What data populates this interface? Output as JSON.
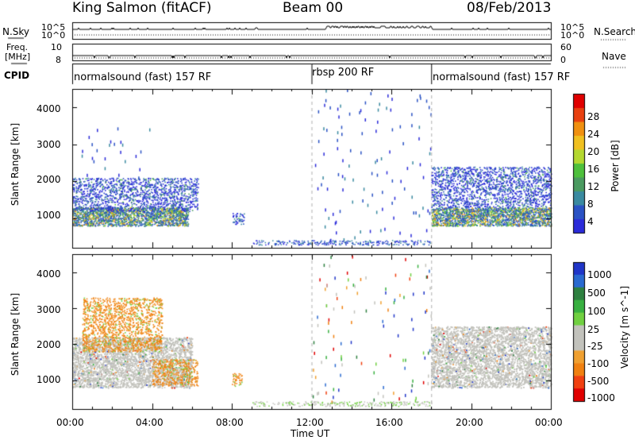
{
  "header": {
    "station": "King Salmon (fitACF)",
    "beam": "Beam 00",
    "date": "08/Feb/2013"
  },
  "top_panels": {
    "nsky_label": "N.Sky",
    "nsearch_label": "N.Search",
    "freq_label": "Freq.",
    "freq_unit": "[MHz]",
    "nave_label": "Nave",
    "cpid_label": "CPID",
    "nsky_ticks": [
      "10^5",
      "10^0"
    ],
    "nsearch_ticks": [
      "10^5",
      "10^0"
    ],
    "freq_ticks": [
      "10",
      "8"
    ],
    "nave_ticks": [
      "60",
      "0"
    ]
  },
  "cpid_segments": [
    {
      "label": "normalsound (fast) 157 RF",
      "start_hour": 0,
      "end_hour": 12
    },
    {
      "label": "rbsp 200 RF",
      "start_hour": 12,
      "end_hour": 18
    },
    {
      "label": "normalsound (fast) 157 RF",
      "start_hour": 18,
      "end_hour": 24
    }
  ],
  "x_axis": {
    "label": "Time UT",
    "ticks": [
      "00:00",
      "04:00",
      "08:00",
      "12:00",
      "16:00",
      "20:00",
      "00:00"
    ]
  },
  "range_axis": {
    "label": "Slant Range [km]",
    "ticks": [
      "1000",
      "2000",
      "3000",
      "4000"
    ]
  },
  "colors": {
    "grey_scatter": "#c2c2bc",
    "dashed_marker": "#b0b0b0"
  },
  "power_scale": {
    "label": "Power [dB]",
    "ticks": [
      "4",
      "8",
      "12",
      "16",
      "20",
      "24",
      "28"
    ],
    "colors": [
      "#2b2bd9",
      "#2a52c4",
      "#3a8aa0",
      "#4a9a60",
      "#4ec03c",
      "#b4d830",
      "#f0c020",
      "#f09010",
      "#e84010",
      "#e00000"
    ]
  },
  "velocity_scale": {
    "label": "Velocity [m s^-1]",
    "ticks": [
      "1000",
      "500",
      "100",
      "25",
      "-25",
      "-100",
      "-500",
      "-1000"
    ],
    "colors": [
      "#2036c8",
      "#2a6ad0",
      "#2e8040",
      "#38b040",
      "#70d040",
      "#c2c2bc",
      "#c2c2bc",
      "#f0a030",
      "#f08010",
      "#f04010",
      "#e00000"
    ]
  },
  "chart_data": [
    {
      "type": "heatmap",
      "title": "Power",
      "x_range_hours": [
        0,
        24
      ],
      "y_range_km": [
        200,
        4500
      ],
      "scatter_blobs": [
        {
          "t0": 0.0,
          "t1": 5.8,
          "r0": 800,
          "r1": 1300,
          "level": "high"
        },
        {
          "t0": 0.0,
          "t1": 6.3,
          "r0": 1200,
          "r1": 2100,
          "level": "low"
        },
        {
          "t0": 0.2,
          "t1": 4.0,
          "r0": 2100,
          "r1": 3500,
          "level": "sparse"
        },
        {
          "t0": 8.0,
          "t1": 8.6,
          "r0": 850,
          "r1": 1150,
          "level": "low"
        },
        {
          "t0": 18.0,
          "t1": 24.0,
          "r0": 800,
          "r1": 1300,
          "level": "high"
        },
        {
          "t0": 18.0,
          "t1": 24.0,
          "r0": 1300,
          "r1": 2400,
          "level": "low"
        },
        {
          "t0": 12.0,
          "t1": 18.0,
          "r0": 300,
          "r1": 4500,
          "level": "sparse"
        }
      ]
    },
    {
      "type": "heatmap",
      "title": "Velocity",
      "x_range_hours": [
        0,
        24
      ],
      "y_range_km": [
        200,
        4500
      ],
      "scatter_blobs": [
        {
          "t0": 0.0,
          "t1": 6.0,
          "r0": 800,
          "r1": 2200,
          "level": "grey"
        },
        {
          "t0": 0.5,
          "t1": 4.5,
          "r0": 1800,
          "r1": 3300,
          "level": "orange"
        },
        {
          "t0": 4.0,
          "t1": 6.3,
          "r0": 850,
          "r1": 1600,
          "level": "orange"
        },
        {
          "t0": 8.0,
          "t1": 8.5,
          "r0": 850,
          "r1": 1200,
          "level": "orange"
        },
        {
          "t0": 18.0,
          "t1": 24.0,
          "r0": 800,
          "r1": 2500,
          "level": "grey"
        },
        {
          "t0": 12.0,
          "t1": 18.0,
          "r0": 300,
          "r1": 4500,
          "level": "sparse"
        }
      ]
    }
  ]
}
